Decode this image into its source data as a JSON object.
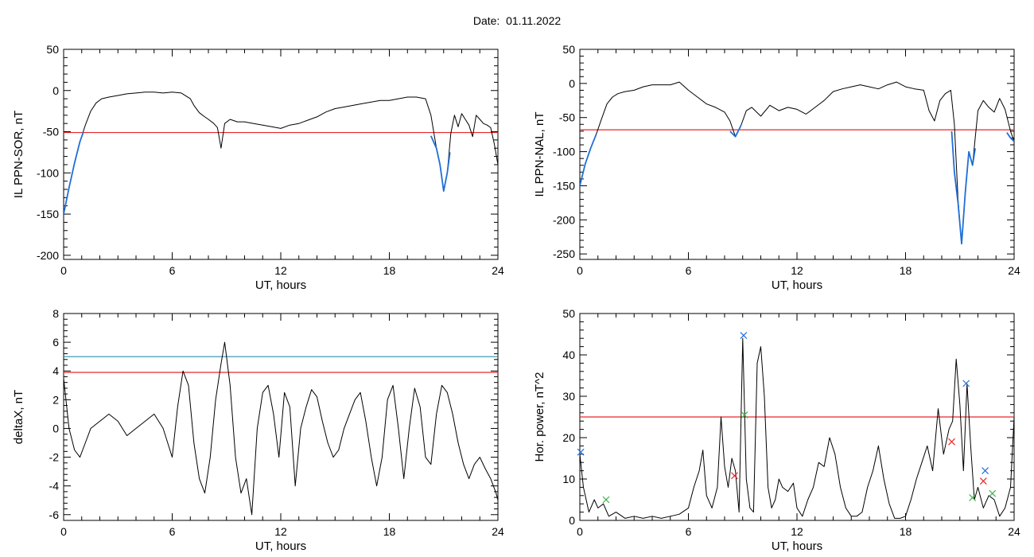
{
  "figure": {
    "date_label": "Date:",
    "date_value": "01.11.2022"
  },
  "chart_data": [
    {
      "type": "line",
      "id": "il-sor",
      "xlabel": "UT, hours",
      "ylabel": "IL PPN-SOR, nT",
      "xlim": [
        0,
        24
      ],
      "ylim": [
        -205,
        50
      ],
      "xticks": [
        0,
        6,
        12,
        18,
        24
      ],
      "yticks": [
        50,
        0,
        -50,
        -100,
        -150,
        -200
      ],
      "threshold_lines": [
        {
          "y": -51,
          "color": "#e8262a"
        }
      ],
      "series": [
        {
          "color": "#000000",
          "x": [
            0.0,
            0.3,
            0.6,
            0.9,
            1.2,
            1.5,
            1.8,
            2.1,
            2.5,
            3.0,
            3.5,
            4.0,
            4.5,
            5.0,
            5.5,
            6.0,
            6.5,
            7.0,
            7.2,
            7.5,
            7.8,
            8.0,
            8.3,
            8.5,
            8.7,
            8.9,
            9.2,
            9.6,
            10.0,
            10.5,
            11.0,
            11.5,
            12.0,
            12.5,
            13.0,
            13.5,
            14.0,
            14.5,
            15.0,
            15.5,
            16.0,
            16.5,
            17.0,
            17.5,
            18.0,
            18.5,
            19.0,
            19.5,
            20.0,
            20.3,
            20.6,
            20.8,
            21.0,
            21.2,
            21.4,
            21.6,
            21.8,
            22.0,
            22.2,
            22.4,
            22.6,
            22.8,
            23.0,
            23.2,
            23.4,
            23.6,
            23.8,
            24.0
          ],
          "y": [
            -150,
            -118,
            -88,
            -62,
            -42,
            -25,
            -15,
            -10,
            -8,
            -6,
            -4,
            -3,
            -2,
            -2,
            -3,
            -2,
            -3,
            -10,
            -18,
            -27,
            -32,
            -35,
            -40,
            -45,
            -70,
            -40,
            -35,
            -38,
            -38,
            -40,
            -42,
            -44,
            -46,
            -42,
            -40,
            -36,
            -32,
            -26,
            -22,
            -20,
            -18,
            -16,
            -14,
            -12,
            -12,
            -10,
            -8,
            -8,
            -10,
            -30,
            -70,
            -90,
            -122,
            -100,
            -52,
            -30,
            -44,
            -28,
            -35,
            -42,
            -56,
            -30,
            -35,
            -40,
            -42,
            -45,
            -65,
            -90
          ]
        },
        {
          "color": "#1f6fd8",
          "x": [
            0.0,
            0.3,
            0.6,
            0.9,
            1.1
          ],
          "y": [
            -150,
            -118,
            -88,
            -62,
            -50
          ]
        },
        {
          "color": "#1f6fd8",
          "x": [
            20.3,
            20.6,
            20.8,
            21.0,
            21.2,
            21.35
          ],
          "y": [
            -55,
            -70,
            -90,
            -122,
            -100,
            -75
          ]
        }
      ]
    },
    {
      "type": "line",
      "id": "il-nal",
      "xlabel": "UT, hours",
      "ylabel": "IL PPN-NAL, nT",
      "xlim": [
        0,
        24
      ],
      "ylim": [
        -258,
        50
      ],
      "xticks": [
        0,
        6,
        12,
        18,
        24
      ],
      "yticks": [
        50,
        0,
        -50,
        -100,
        -150,
        -200,
        -250
      ],
      "threshold_lines": [
        {
          "y": -68,
          "color": "#e8262a"
        }
      ],
      "series": [
        {
          "color": "#000000",
          "x": [
            0.0,
            0.3,
            0.6,
            0.9,
            1.2,
            1.5,
            1.8,
            2.1,
            2.5,
            3.0,
            3.5,
            4.0,
            4.5,
            5.0,
            5.5,
            6.0,
            6.5,
            7.0,
            7.5,
            8.0,
            8.3,
            8.6,
            8.9,
            9.2,
            9.5,
            10.0,
            10.5,
            11.0,
            11.5,
            12.0,
            12.5,
            13.0,
            13.5,
            14.0,
            14.5,
            15.0,
            15.5,
            16.0,
            16.5,
            17.0,
            17.5,
            18.0,
            18.5,
            19.0,
            19.3,
            19.6,
            19.9,
            20.2,
            20.5,
            20.7,
            20.9,
            21.1,
            21.3,
            21.5,
            21.7,
            22.0,
            22.3,
            22.6,
            22.9,
            23.2,
            23.5,
            23.8,
            24.0
          ],
          "y": [
            -150,
            -118,
            -95,
            -75,
            -52,
            -30,
            -20,
            -15,
            -12,
            -10,
            -5,
            -2,
            -2,
            -2,
            2,
            -10,
            -20,
            -30,
            -35,
            -42,
            -55,
            -78,
            -62,
            -40,
            -35,
            -48,
            -32,
            -40,
            -35,
            -38,
            -45,
            -35,
            -25,
            -12,
            -8,
            -5,
            -2,
            -5,
            -8,
            -2,
            2,
            -5,
            -8,
            -10,
            -40,
            -55,
            -25,
            -15,
            -10,
            -60,
            -170,
            -235,
            -160,
            -100,
            -120,
            -40,
            -25,
            -35,
            -42,
            -22,
            -38,
            -70,
            -85
          ]
        },
        {
          "color": "#1f6fd8",
          "x": [
            0.0,
            0.3,
            0.6,
            0.9
          ],
          "y": [
            -150,
            -118,
            -95,
            -75
          ]
        },
        {
          "color": "#1f6fd8",
          "x": [
            8.3,
            8.6,
            8.9
          ],
          "y": [
            -70,
            -78,
            -62
          ]
        },
        {
          "color": "#1f6fd8",
          "x": [
            20.55,
            20.7,
            20.9,
            21.1,
            21.3,
            21.5,
            21.7,
            21.85
          ],
          "y": [
            -70,
            -130,
            -175,
            -235,
            -160,
            -100,
            -120,
            -95
          ]
        },
        {
          "color": "#1f6fd8",
          "x": [
            23.6,
            23.8,
            24.0
          ],
          "y": [
            -72,
            -80,
            -85
          ]
        }
      ]
    },
    {
      "type": "line",
      "id": "delta-x",
      "xlabel": "UT, hours",
      "ylabel": "deltaX, nT",
      "xlim": [
        0,
        24
      ],
      "ylim": [
        -6.4,
        8
      ],
      "xticks": [
        0,
        6,
        12,
        18,
        24
      ],
      "yticks": [
        8,
        6,
        4,
        2,
        0,
        -2,
        -4,
        -6
      ],
      "threshold_lines": [
        {
          "y": 5.0,
          "color": "#2a8fa8"
        },
        {
          "y": 3.9,
          "color": "#e8262a"
        }
      ],
      "series": [
        {
          "color": "#000000",
          "x": [
            0.0,
            0.3,
            0.6,
            0.9,
            1.2,
            1.5,
            2.0,
            2.5,
            3.0,
            3.5,
            4.0,
            4.5,
            5.0,
            5.5,
            6.0,
            6.3,
            6.6,
            6.9,
            7.2,
            7.5,
            7.8,
            8.1,
            8.4,
            8.7,
            8.9,
            9.2,
            9.5,
            9.8,
            10.1,
            10.4,
            10.7,
            11.0,
            11.3,
            11.6,
            11.9,
            12.2,
            12.5,
            12.8,
            13.1,
            13.4,
            13.7,
            14.0,
            14.3,
            14.6,
            14.9,
            15.2,
            15.5,
            15.8,
            16.1,
            16.4,
            16.7,
            17.0,
            17.3,
            17.6,
            17.9,
            18.2,
            18.5,
            18.8,
            19.1,
            19.4,
            19.7,
            20.0,
            20.3,
            20.6,
            20.9,
            21.2,
            21.5,
            21.8,
            22.1,
            22.4,
            22.7,
            23.0,
            23.3,
            23.6,
            23.9,
            24.0
          ],
          "y": [
            3.5,
            0.0,
            -1.5,
            -2.0,
            -1.0,
            0.0,
            0.5,
            1.0,
            0.5,
            -0.5,
            0.0,
            0.5,
            1.0,
            0.0,
            -2.0,
            1.5,
            4.0,
            3.0,
            -1.0,
            -3.5,
            -4.5,
            -2.0,
            2.0,
            4.5,
            6.0,
            3.0,
            -2.0,
            -4.5,
            -3.5,
            -6.0,
            0.0,
            2.5,
            3.0,
            1.0,
            -2.0,
            2.5,
            1.5,
            -4.0,
            0.0,
            1.5,
            2.7,
            2.2,
            0.5,
            -1.0,
            -2.0,
            -1.5,
            0.0,
            1.0,
            2.0,
            2.5,
            0.5,
            -2.0,
            -4.0,
            -2.0,
            2.0,
            3.0,
            0.0,
            -3.5,
            0.0,
            2.8,
            1.5,
            -2.0,
            -2.5,
            1.0,
            3.0,
            2.5,
            1.0,
            -1.0,
            -2.5,
            -3.5,
            -2.5,
            -2.0,
            -2.8,
            -3.5,
            -4.5,
            -5.0
          ]
        }
      ]
    },
    {
      "type": "line",
      "id": "hor-power",
      "xlabel": "UT, hours",
      "ylabel": "Hor. power, nT^2",
      "xlim": [
        0,
        24
      ],
      "ylim": [
        0,
        50
      ],
      "xticks": [
        0,
        6,
        12,
        18,
        24
      ],
      "yticks": [
        50,
        40,
        30,
        20,
        10,
        0
      ],
      "threshold_lines": [
        {
          "y": 25,
          "color": "#e8262a"
        }
      ],
      "series": [
        {
          "color": "#000000",
          "x": [
            0.0,
            0.2,
            0.5,
            0.8,
            1.0,
            1.3,
            1.6,
            2.0,
            2.5,
            3.0,
            3.5,
            4.0,
            4.5,
            5.0,
            5.5,
            6.0,
            6.3,
            6.6,
            6.8,
            7.0,
            7.3,
            7.6,
            7.8,
            8.0,
            8.2,
            8.4,
            8.6,
            8.8,
            9.0,
            9.2,
            9.4,
            9.6,
            9.8,
            10.0,
            10.2,
            10.4,
            10.6,
            10.8,
            11.0,
            11.2,
            11.5,
            11.8,
            12.0,
            12.3,
            12.6,
            12.9,
            13.2,
            13.5,
            13.8,
            14.1,
            14.4,
            14.7,
            15.0,
            15.3,
            15.6,
            15.9,
            16.2,
            16.5,
            16.8,
            17.1,
            17.4,
            17.7,
            18.0,
            18.3,
            18.6,
            18.9,
            19.2,
            19.5,
            19.8,
            20.1,
            20.4,
            20.6,
            20.8,
            21.0,
            21.2,
            21.4,
            21.6,
            21.8,
            22.0,
            22.3,
            22.6,
            22.9,
            23.2,
            23.5,
            23.8,
            24.0
          ],
          "y": [
            16,
            8,
            2,
            5,
            3,
            4,
            1,
            2,
            0.5,
            1,
            0.5,
            1,
            0.5,
            1,
            1.5,
            3,
            8,
            12,
            17,
            6,
            3,
            8,
            25,
            13,
            8,
            15,
            12,
            2,
            44,
            10,
            3,
            2,
            38,
            42,
            30,
            8,
            3,
            5,
            10,
            8,
            7,
            9,
            3,
            1,
            5,
            8,
            14,
            13,
            20,
            16,
            8,
            3,
            1,
            1,
            2,
            8,
            12,
            18,
            10,
            4,
            0.5,
            0.5,
            1,
            5,
            10,
            14,
            18,
            12,
            27,
            16,
            22,
            24,
            39,
            28,
            12,
            33,
            18,
            5,
            8,
            3,
            6,
            5,
            1,
            3,
            8,
            25
          ]
        }
      ],
      "markers": [
        {
          "x": 9.05,
          "y": 44.7,
          "color": "#1f6fd8"
        },
        {
          "x": 21.35,
          "y": 33.1,
          "color": "#1f6fd8"
        },
        {
          "x": 22.4,
          "y": 12.0,
          "color": "#1f6fd8"
        },
        {
          "x": 0.05,
          "y": 16.5,
          "color": "#1f6fd8"
        },
        {
          "x": 20.55,
          "y": 19.0,
          "color": "#e8262a"
        },
        {
          "x": 8.55,
          "y": 10.8,
          "color": "#e8262a"
        },
        {
          "x": 22.3,
          "y": 9.5,
          "color": "#e8262a"
        },
        {
          "x": 1.45,
          "y": 5.0,
          "color": "#3cb44b"
        },
        {
          "x": 9.1,
          "y": 25.5,
          "color": "#3cb44b"
        },
        {
          "x": 21.7,
          "y": 5.5,
          "color": "#3cb44b"
        },
        {
          "x": 22.8,
          "y": 6.5,
          "color": "#3cb44b"
        }
      ]
    }
  ]
}
